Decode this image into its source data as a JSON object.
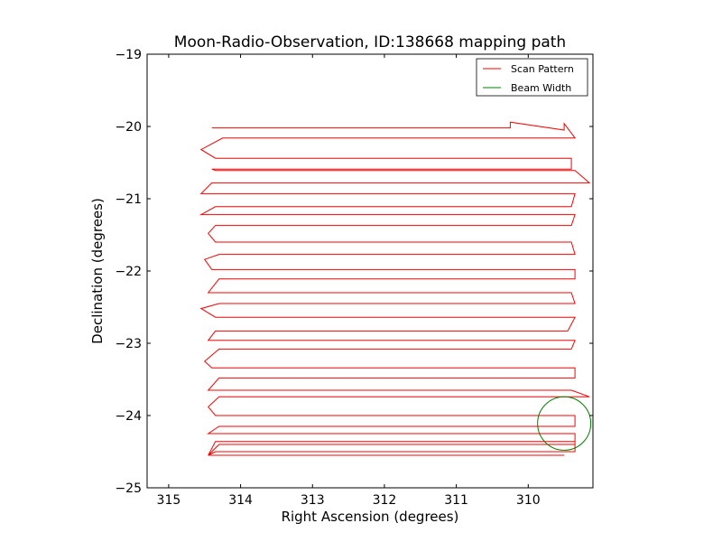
{
  "chart_data": {
    "type": "line",
    "title": "Moon-Radio-Observation, ID:138668 mapping path",
    "xlabel": "Right Ascension (degrees)",
    "ylabel": "Declination (degrees)",
    "xlim": [
      315.3,
      309.1
    ],
    "ylim": [
      -25,
      -19
    ],
    "x_ticks": [
      315,
      314,
      313,
      312,
      311,
      310
    ],
    "y_ticks": [
      -19,
      -20,
      -21,
      -22,
      -23,
      -24,
      -25
    ],
    "x_tick_labels": [
      "315",
      "314",
      "313",
      "312",
      "311",
      "310"
    ],
    "y_tick_labels": [
      "−19",
      "−20",
      "−21",
      "−22",
      "−23",
      "−24",
      "−25"
    ],
    "grid": false,
    "legend_position": "top-right",
    "series": [
      {
        "name": "Scan Pattern",
        "kind": "line",
        "color": "#ff0000",
        "x": [
          314.4,
          310.25,
          310.25,
          309.5,
          309.5,
          309.35,
          314.25,
          314.55,
          314.35,
          309.4,
          309.4,
          314.4,
          314.35,
          309.35,
          309.35,
          309.15,
          314.4,
          314.55,
          314.4,
          309.35,
          309.4,
          314.35,
          314.55,
          314.35,
          309.35,
          309.4,
          314.35,
          314.45,
          314.35,
          309.4,
          309.35,
          314.3,
          314.5,
          314.4,
          309.35,
          309.35,
          314.3,
          314.45,
          314.35,
          309.4,
          309.35,
          314.3,
          314.55,
          314.35,
          309.35,
          309.45,
          314.35,
          314.45,
          314.35,
          309.35,
          309.4,
          314.3,
          314.5,
          314.4,
          309.35,
          309.35,
          314.3,
          314.45,
          314.35,
          309.4,
          309.15,
          314.3,
          314.45,
          314.35,
          309.35,
          309.35,
          314.3,
          314.45,
          314.35,
          309.35,
          309.35,
          314.3,
          314.45,
          314.35,
          309.35,
          309.35,
          314.35,
          314.45,
          314.35,
          309.5
        ],
        "y": [
          -20.02,
          -20.02,
          -19.94,
          -20.05,
          -19.96,
          -20.16,
          -20.16,
          -20.32,
          -20.44,
          -20.44,
          -20.59,
          -20.59,
          -20.61,
          -20.61,
          -20.61,
          -20.78,
          -20.78,
          -20.93,
          -20.93,
          -20.93,
          -21.11,
          -21.11,
          -21.22,
          -21.22,
          -21.22,
          -21.37,
          -21.37,
          -21.48,
          -21.6,
          -21.6,
          -21.77,
          -21.77,
          -21.84,
          -21.98,
          -21.98,
          -22.11,
          -22.11,
          -22.3,
          -22.3,
          -22.3,
          -22.45,
          -22.45,
          -22.52,
          -22.64,
          -22.64,
          -22.83,
          -22.83,
          -22.96,
          -22.96,
          -22.96,
          -23.08,
          -23.08,
          -23.25,
          -23.34,
          -23.34,
          -23.48,
          -23.48,
          -23.65,
          -23.65,
          -23.65,
          -23.74,
          -23.74,
          -23.88,
          -24.0,
          -24.0,
          -24.15,
          -24.15,
          -24.25,
          -24.25,
          -24.25,
          -24.4,
          -24.4,
          -24.55,
          -24.36,
          -24.36,
          -24.5,
          -24.5,
          -24.55,
          -24.55,
          -24.55
        ]
      },
      {
        "name": "Beam Width",
        "kind": "circle",
        "color": "#008000",
        "center": [
          309.5,
          -24.11
        ],
        "radius": 0.37
      }
    ]
  }
}
